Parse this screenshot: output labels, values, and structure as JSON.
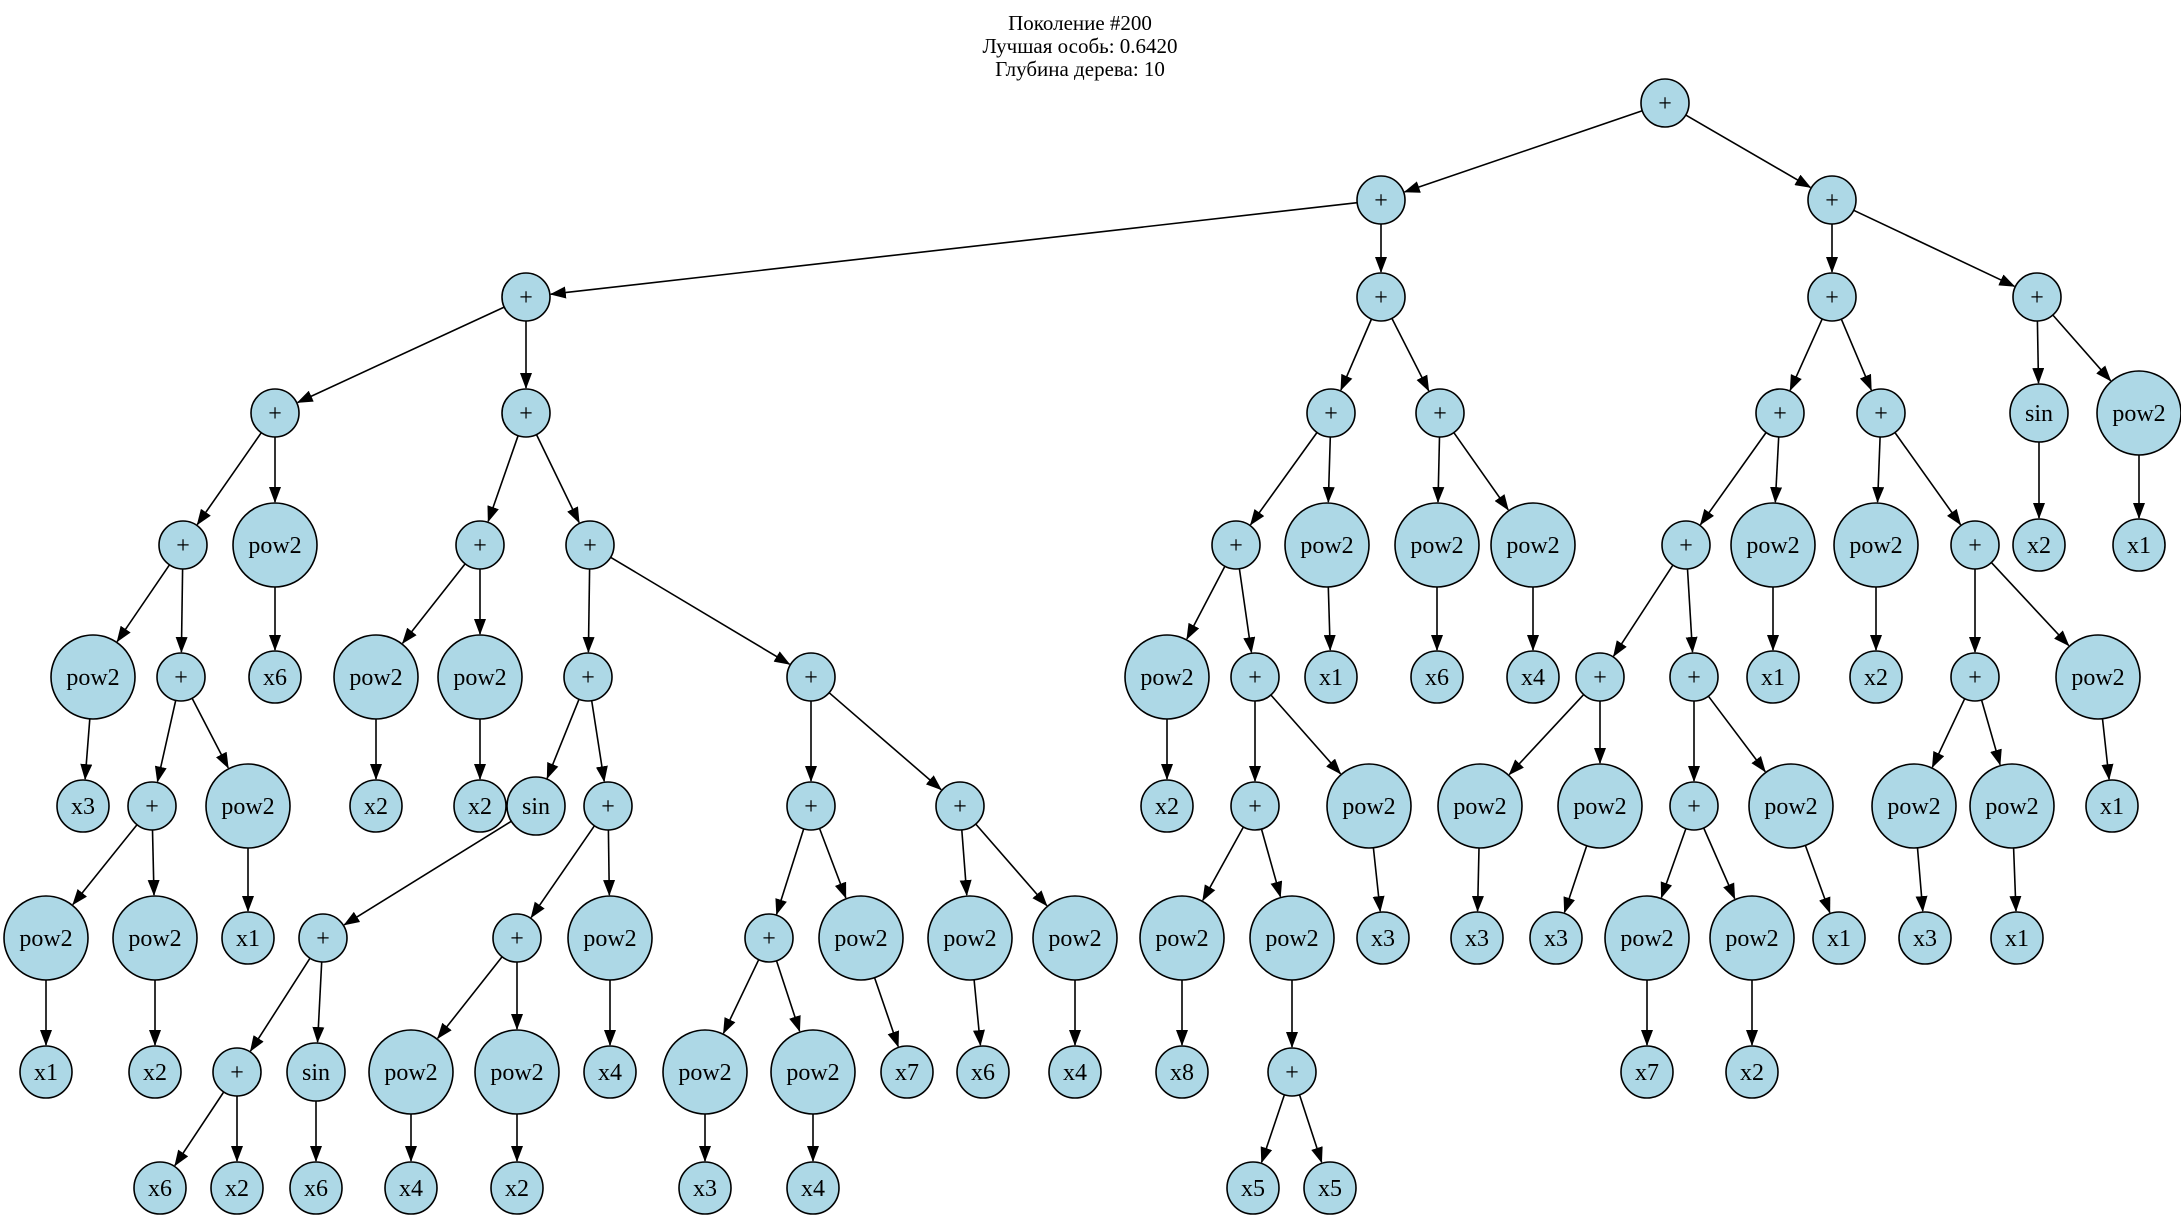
{
  "title": {
    "lines": [
      "Поколение #200",
      "Лучшая особь: 0.6420",
      "Глубина дерева: 10"
    ]
  },
  "palette": {
    "background": "#ffffff",
    "node_fill": "#add8e6",
    "node_stroke": "#000000",
    "edge": "#000000",
    "text": "#000000"
  },
  "tree": {
    "depth": 10,
    "node_radius": {
      "plus": 24,
      "leaf": 26,
      "sin": 29,
      "pow2": 42
    },
    "node_fields": [
      "id",
      "label",
      "x",
      "y"
    ],
    "nodes": [
      [
        "n0",
        "+",
        1665,
        103
      ],
      [
        "n1",
        "+",
        1381,
        200
      ],
      [
        "n2",
        "+",
        1832,
        200
      ],
      [
        "n3",
        "+",
        526,
        297
      ],
      [
        "n4",
        "+",
        1381,
        297
      ],
      [
        "n5",
        "+",
        1832,
        297
      ],
      [
        "n6",
        "+",
        2037,
        297
      ],
      [
        "n7",
        "+",
        275,
        413
      ],
      [
        "n8",
        "+",
        526,
        413
      ],
      [
        "n9",
        "+",
        1331,
        413
      ],
      [
        "n10",
        "+",
        1440,
        413
      ],
      [
        "n11",
        "+",
        1780,
        413
      ],
      [
        "n12",
        "+",
        1881,
        413
      ],
      [
        "n13",
        "sin",
        2039,
        413
      ],
      [
        "n14",
        "pow2",
        2139,
        413
      ],
      [
        "n15",
        "+",
        183,
        545
      ],
      [
        "n16",
        "pow2",
        275,
        545
      ],
      [
        "n17",
        "+",
        480,
        545
      ],
      [
        "n18",
        "+",
        590,
        545
      ],
      [
        "n19",
        "+",
        1236,
        545
      ],
      [
        "n20",
        "pow2",
        1327,
        545
      ],
      [
        "n21",
        "pow2",
        1437,
        545
      ],
      [
        "n22",
        "pow2",
        1533,
        545
      ],
      [
        "n23",
        "+",
        1686,
        545
      ],
      [
        "n24",
        "pow2",
        1773,
        545
      ],
      [
        "n25",
        "pow2",
        1876,
        545
      ],
      [
        "n26",
        "+",
        1975,
        545
      ],
      [
        "n27",
        "x2",
        2039,
        545
      ],
      [
        "n28",
        "x1",
        2139,
        545
      ],
      [
        "n29",
        "pow2",
        93,
        677
      ],
      [
        "n30",
        "+",
        181,
        677
      ],
      [
        "n31",
        "x6",
        275,
        677
      ],
      [
        "n32",
        "pow2",
        376,
        677
      ],
      [
        "n33",
        "pow2",
        480,
        677
      ],
      [
        "n34",
        "+",
        588,
        677
      ],
      [
        "n35",
        "+",
        811,
        677
      ],
      [
        "n36",
        "pow2",
        1167,
        677
      ],
      [
        "n37",
        "+",
        1255,
        677
      ],
      [
        "n38",
        "x1",
        1331,
        677
      ],
      [
        "n39",
        "x6",
        1437,
        677
      ],
      [
        "n40",
        "x4",
        1533,
        677
      ],
      [
        "n41",
        "+",
        1600,
        677
      ],
      [
        "n42",
        "+",
        1694,
        677
      ],
      [
        "n43",
        "x1",
        1773,
        677
      ],
      [
        "n44",
        "x2",
        1876,
        677
      ],
      [
        "n45",
        "+",
        1975,
        677
      ],
      [
        "n46",
        "pow2",
        2098,
        677
      ],
      [
        "n47",
        "x3",
        83,
        806
      ],
      [
        "n48",
        "+",
        152,
        806
      ],
      [
        "n49",
        "pow2",
        248,
        806
      ],
      [
        "n50",
        "x2",
        376,
        806
      ],
      [
        "n51",
        "x2",
        480,
        806
      ],
      [
        "n52",
        "sin",
        536,
        806
      ],
      [
        "n53",
        "+",
        608,
        806
      ],
      [
        "n54",
        "+",
        811,
        806
      ],
      [
        "n55",
        "+",
        960,
        806
      ],
      [
        "n56",
        "x2",
        1167,
        806
      ],
      [
        "n57",
        "+",
        1255,
        806
      ],
      [
        "n58",
        "pow2",
        1369,
        806
      ],
      [
        "n59",
        "pow2",
        1480,
        806
      ],
      [
        "n60",
        "pow2",
        1600,
        806
      ],
      [
        "n61",
        "+",
        1694,
        806
      ],
      [
        "n62",
        "pow2",
        1791,
        806
      ],
      [
        "n63",
        "pow2",
        1914,
        806
      ],
      [
        "n64",
        "pow2",
        2012,
        806
      ],
      [
        "n65",
        "x1",
        2112,
        806
      ],
      [
        "n66",
        "pow2",
        46,
        938
      ],
      [
        "n67",
        "pow2",
        155,
        938
      ],
      [
        "n68",
        "x1",
        248,
        938
      ],
      [
        "n69",
        "+",
        323,
        938
      ],
      [
        "n70",
        "+",
        517,
        938
      ],
      [
        "n71",
        "pow2",
        610,
        938
      ],
      [
        "n72",
        "+",
        769,
        938
      ],
      [
        "n73",
        "pow2",
        861,
        938
      ],
      [
        "n74",
        "pow2",
        970,
        938
      ],
      [
        "n75",
        "pow2",
        1075,
        938
      ],
      [
        "n76",
        "pow2",
        1182,
        938
      ],
      [
        "n77",
        "pow2",
        1292,
        938
      ],
      [
        "n78",
        "x3",
        1383,
        938
      ],
      [
        "n79",
        "x3",
        1477,
        938
      ],
      [
        "n80",
        "x3",
        1556,
        938
      ],
      [
        "n81",
        "pow2",
        1647,
        938
      ],
      [
        "n82",
        "pow2",
        1752,
        938
      ],
      [
        "n83",
        "x1",
        1839,
        938
      ],
      [
        "n84",
        "x3",
        1925,
        938
      ],
      [
        "n85",
        "x1",
        2017,
        938
      ],
      [
        "n86",
        "x1",
        46,
        1072
      ],
      [
        "n87",
        "x2",
        155,
        1072
      ],
      [
        "n88",
        "+",
        237,
        1072
      ],
      [
        "n89",
        "sin",
        316,
        1072
      ],
      [
        "n90",
        "pow2",
        411,
        1072
      ],
      [
        "n91",
        "pow2",
        517,
        1072
      ],
      [
        "n92",
        "x4",
        610,
        1072
      ],
      [
        "n93",
        "pow2",
        705,
        1072
      ],
      [
        "n94",
        "pow2",
        813,
        1072
      ],
      [
        "n95",
        "x7",
        907,
        1072
      ],
      [
        "n96",
        "x6",
        983,
        1072
      ],
      [
        "n97",
        "x4",
        1075,
        1072
      ],
      [
        "n98",
        "x8",
        1182,
        1072
      ],
      [
        "n99",
        "+",
        1292,
        1072
      ],
      [
        "n100",
        "x7",
        1647,
        1072
      ],
      [
        "n101",
        "x2",
        1752,
        1072
      ],
      [
        "n102",
        "x6",
        160,
        1188
      ],
      [
        "n103",
        "x2",
        237,
        1188
      ],
      [
        "n104",
        "x6",
        316,
        1188
      ],
      [
        "n105",
        "x4",
        411,
        1188
      ],
      [
        "n106",
        "x2",
        517,
        1188
      ],
      [
        "n107",
        "x3",
        705,
        1188
      ],
      [
        "n108",
        "x4",
        813,
        1188
      ],
      [
        "n109",
        "x5",
        1253,
        1188
      ],
      [
        "n110",
        "x5",
        1330,
        1188
      ]
    ],
    "edges": [
      [
        "n0",
        "n1"
      ],
      [
        "n0",
        "n2"
      ],
      [
        "n1",
        "n3"
      ],
      [
        "n1",
        "n4"
      ],
      [
        "n2",
        "n5"
      ],
      [
        "n2",
        "n6"
      ],
      [
        "n3",
        "n7"
      ],
      [
        "n3",
        "n8"
      ],
      [
        "n4",
        "n9"
      ],
      [
        "n4",
        "n10"
      ],
      [
        "n5",
        "n11"
      ],
      [
        "n5",
        "n12"
      ],
      [
        "n6",
        "n13"
      ],
      [
        "n6",
        "n14"
      ],
      [
        "n7",
        "n15"
      ],
      [
        "n7",
        "n16"
      ],
      [
        "n8",
        "n17"
      ],
      [
        "n8",
        "n18"
      ],
      [
        "n9",
        "n19"
      ],
      [
        "n9",
        "n20"
      ],
      [
        "n10",
        "n21"
      ],
      [
        "n10",
        "n22"
      ],
      [
        "n11",
        "n23"
      ],
      [
        "n11",
        "n24"
      ],
      [
        "n12",
        "n25"
      ],
      [
        "n12",
        "n26"
      ],
      [
        "n13",
        "n27"
      ],
      [
        "n14",
        "n28"
      ],
      [
        "n15",
        "n29"
      ],
      [
        "n15",
        "n30"
      ],
      [
        "n16",
        "n31"
      ],
      [
        "n17",
        "n32"
      ],
      [
        "n17",
        "n33"
      ],
      [
        "n18",
        "n34"
      ],
      [
        "n18",
        "n35"
      ],
      [
        "n19",
        "n36"
      ],
      [
        "n19",
        "n37"
      ],
      [
        "n20",
        "n38"
      ],
      [
        "n21",
        "n39"
      ],
      [
        "n22",
        "n40"
      ],
      [
        "n23",
        "n41"
      ],
      [
        "n23",
        "n42"
      ],
      [
        "n24",
        "n43"
      ],
      [
        "n25",
        "n44"
      ],
      [
        "n26",
        "n45"
      ],
      [
        "n26",
        "n46"
      ],
      [
        "n29",
        "n47"
      ],
      [
        "n30",
        "n48"
      ],
      [
        "n30",
        "n49"
      ],
      [
        "n32",
        "n50"
      ],
      [
        "n33",
        "n51"
      ],
      [
        "n34",
        "n52"
      ],
      [
        "n34",
        "n53"
      ],
      [
        "n35",
        "n54"
      ],
      [
        "n35",
        "n55"
      ],
      [
        "n36",
        "n56"
      ],
      [
        "n37",
        "n57"
      ],
      [
        "n37",
        "n58"
      ],
      [
        "n41",
        "n59"
      ],
      [
        "n41",
        "n60"
      ],
      [
        "n42",
        "n61"
      ],
      [
        "n42",
        "n62"
      ],
      [
        "n45",
        "n63"
      ],
      [
        "n45",
        "n64"
      ],
      [
        "n46",
        "n65"
      ],
      [
        "n48",
        "n66"
      ],
      [
        "n48",
        "n67"
      ],
      [
        "n49",
        "n68"
      ],
      [
        "n52",
        "n69"
      ],
      [
        "n53",
        "n70"
      ],
      [
        "n53",
        "n71"
      ],
      [
        "n54",
        "n72"
      ],
      [
        "n54",
        "n73"
      ],
      [
        "n55",
        "n74"
      ],
      [
        "n55",
        "n75"
      ],
      [
        "n57",
        "n76"
      ],
      [
        "n57",
        "n77"
      ],
      [
        "n58",
        "n78"
      ],
      [
        "n59",
        "n79"
      ],
      [
        "n60",
        "n80"
      ],
      [
        "n61",
        "n81"
      ],
      [
        "n61",
        "n82"
      ],
      [
        "n62",
        "n83"
      ],
      [
        "n63",
        "n84"
      ],
      [
        "n64",
        "n85"
      ],
      [
        "n66",
        "n86"
      ],
      [
        "n67",
        "n87"
      ],
      [
        "n69",
        "n88"
      ],
      [
        "n69",
        "n89"
      ],
      [
        "n70",
        "n90"
      ],
      [
        "n70",
        "n91"
      ],
      [
        "n71",
        "n92"
      ],
      [
        "n72",
        "n93"
      ],
      [
        "n72",
        "n94"
      ],
      [
        "n73",
        "n95"
      ],
      [
        "n74",
        "n96"
      ],
      [
        "n75",
        "n97"
      ],
      [
        "n76",
        "n98"
      ],
      [
        "n77",
        "n99"
      ],
      [
        "n81",
        "n100"
      ],
      [
        "n82",
        "n101"
      ],
      [
        "n88",
        "n102"
      ],
      [
        "n88",
        "n103"
      ],
      [
        "n89",
        "n104"
      ],
      [
        "n90",
        "n105"
      ],
      [
        "n91",
        "n106"
      ],
      [
        "n93",
        "n107"
      ],
      [
        "n94",
        "n108"
      ],
      [
        "n99",
        "n109"
      ],
      [
        "n99",
        "n110"
      ]
    ]
  }
}
